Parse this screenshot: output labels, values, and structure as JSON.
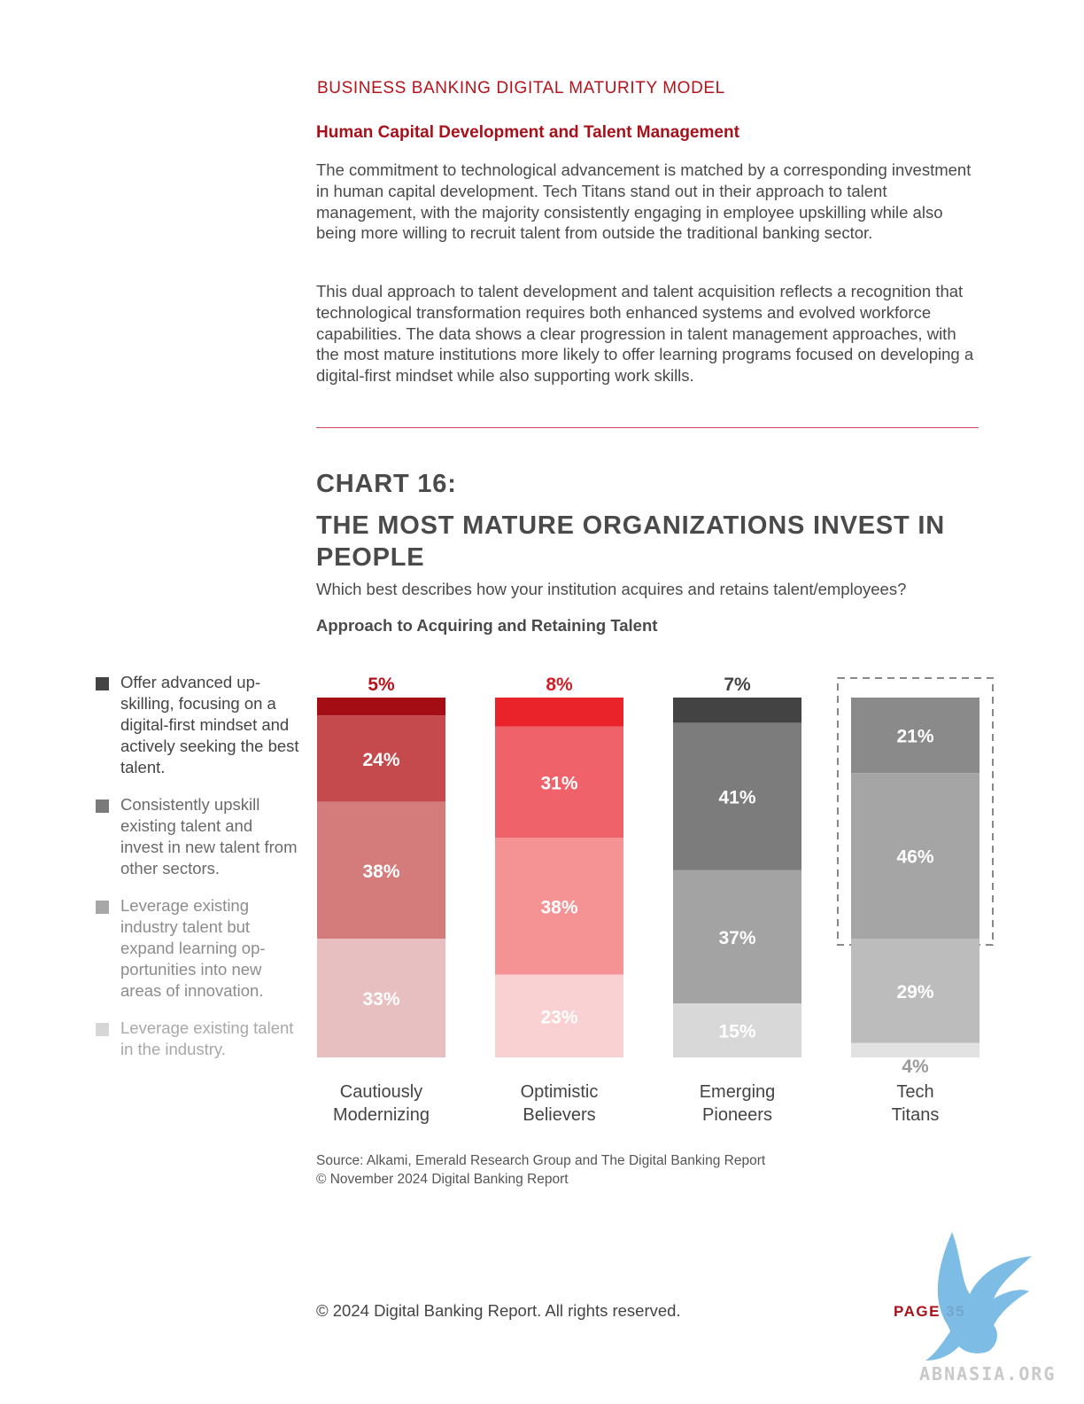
{
  "header": {
    "report_title": "BUSINESS BANKING DIGITAL MATURITY MODEL",
    "section_heading": "Human Capital Development and Talent Management"
  },
  "body": {
    "paragraph_1": "The commitment to technological advancement is matched by a corresponding investment in human capital development. Tech Titans stand out in their approach to talent management, with the majority consistently engaging in employee upskilling while also being more willing to recruit talent from outside the traditional banking sector.",
    "paragraph_2": "This dual approach to talent development and talent acquisition reflects a recognition that technological transformation requires both enhanced systems and evolved workforce capabilities. The data shows a clear progression in talent management approaches, with the most mature institutions more likely to offer learning programs focused on developing a digital-first mindset while also supporting work skills."
  },
  "chart": {
    "number": "CHART 16:",
    "title": "THE MOST MATURE ORGANIZATIONS INVEST IN PEOPLE",
    "question": "Which best describes how your institution acquires and retains talent/employees?",
    "subtitle": "Approach to Acquiring and Retaining Talent"
  },
  "legend": [
    {
      "label": "Offer advanced up-skilling, focusing on a digital-first mindset and actively seeking the best talent.",
      "swatch": "#444444",
      "text_color": "#444444"
    },
    {
      "label": "Consistently upskill existing talent and invest in new talent from other sectors.",
      "swatch": "#7a7a7a",
      "text_color": "#6a6a6a"
    },
    {
      "label": "Leverage existing industry talent but expand learning op-portunities into new areas of innovation.",
      "swatch": "#a7a7a7",
      "text_color": "#8c8c8c"
    },
    {
      "label": "Leverage existing talent in the industry.",
      "swatch": "#d6d6d6",
      "text_color": "#a8a8a8"
    }
  ],
  "chart_data": {
    "type": "bar",
    "stacked": true,
    "categories": [
      [
        "Cautiously",
        "Modernizing"
      ],
      [
        "Optimistic",
        "Believers"
      ],
      [
        "Emerging",
        "Pioneers"
      ],
      [
        "Tech",
        "Titans"
      ]
    ],
    "series": [
      {
        "name": "Offer advanced up-skilling, focusing on a digital-first mindset and actively seeking the best talent.",
        "values": [
          5,
          8,
          7,
          21
        ]
      },
      {
        "name": "Consistently upskill existing talent and invest in new talent from other sectors.",
        "values": [
          24,
          31,
          41,
          46
        ]
      },
      {
        "name": "Leverage existing industry talent but expand learning op-portunities into new areas of innovation.",
        "values": [
          38,
          38,
          37,
          29
        ]
      },
      {
        "name": "Leverage existing talent in the industry.",
        "values": [
          33,
          23,
          15,
          4
        ]
      }
    ],
    "segment_colors": [
      [
        "#a30d13",
        "#c44a4d",
        "#d47c7c",
        "#e8bfc0"
      ],
      [
        "#e92329",
        "#f0626a",
        "#f59294",
        "#f9d1d2"
      ],
      [
        "#434343",
        "#7c7c7c",
        "#a3a3a3",
        "#d8d8d8"
      ],
      [
        "#8a8a8a",
        "#a5a5a5",
        "#bcbcbc",
        "#e2e2e2"
      ]
    ],
    "top_label_colors": [
      "#b5121b",
      "#d31c24",
      "#444444",
      "#ffffff"
    ],
    "highlighted_category": "Tech Titans",
    "ylim": [
      0,
      100
    ],
    "labels": {
      "Cautiously Modernizing": [
        "5%",
        "24%",
        "38%",
        "33%"
      ],
      "Optimistic Believers": [
        "8%",
        "31%",
        "38%",
        "23%"
      ],
      "Emerging Pioneers": [
        "7%",
        "41%",
        "37%",
        "15%"
      ],
      "Tech Titans": [
        "21%",
        "46%",
        "29%",
        "4%"
      ]
    }
  },
  "source": {
    "line_1": "Source: Alkami, Emerald Research Group and The Digital Banking Report",
    "line_2": "© November 2024 Digital Banking Report"
  },
  "footer": {
    "copyright": "© 2024 Digital Banking Report. All rights reserved.",
    "page": "PAGE 35"
  },
  "watermark": {
    "text": "ABNASIA.ORG",
    "color": "#5aa9dd"
  }
}
